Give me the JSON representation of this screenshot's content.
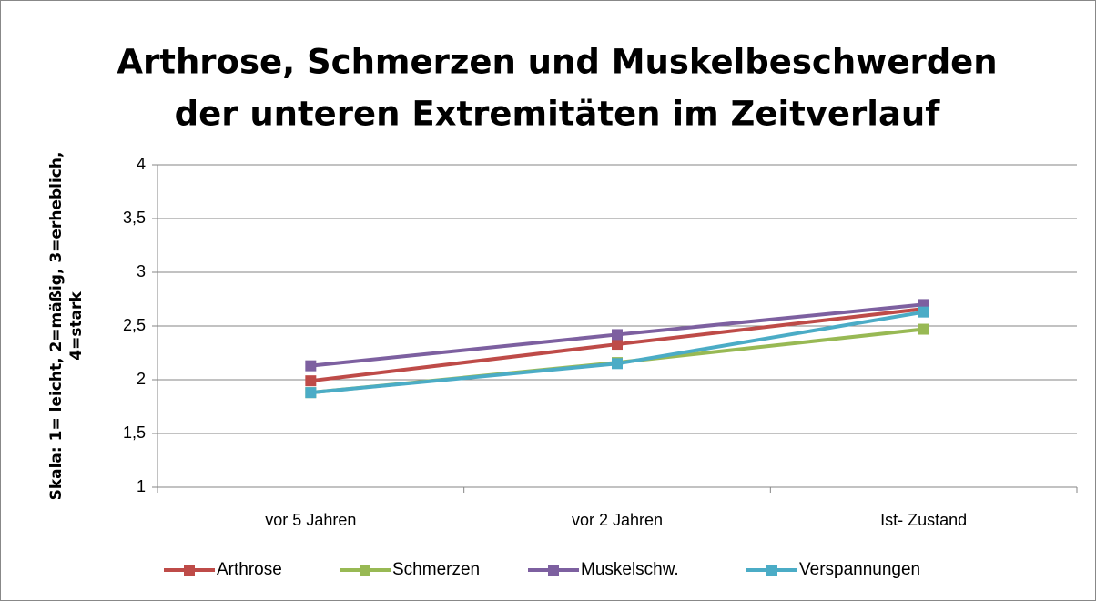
{
  "chart_data": {
    "type": "line",
    "title": [
      "Arthrose, Schmerzen und Muskelbeschwerden",
      "der unteren Extremitäten im Zeitverlauf"
    ],
    "y_label": [
      "Skala: 1= leicht, 2=mäßig, 3=erheblich,",
      "4=stark"
    ],
    "categories": [
      "vor 5 Jahren",
      "vor 2 Jahren",
      "Ist- Zustand"
    ],
    "series": [
      {
        "name": "Arthrose",
        "color": "#be4b48",
        "values": [
          1.99,
          2.33,
          2.66
        ]
      },
      {
        "name": "Schmerzen",
        "color": "#98b954",
        "values": [
          1.88,
          2.16,
          2.47
        ]
      },
      {
        "name": "Muskelschw.",
        "color": "#7d60a0",
        "values": [
          2.13,
          2.42,
          2.7
        ]
      },
      {
        "name": "Verspannungen",
        "color": "#4bacc6",
        "values": [
          1.88,
          2.15,
          2.63
        ]
      }
    ],
    "ylim": [
      1,
      4
    ],
    "yticks": [
      1,
      {
        "value": 1.5,
        "label": "1,5"
      },
      2,
      {
        "value": 2.5,
        "label": "2,5"
      },
      3,
      {
        "value": 3.5,
        "label": "3,5"
      },
      4
    ],
    "grid": true,
    "legend": "bottom"
  }
}
